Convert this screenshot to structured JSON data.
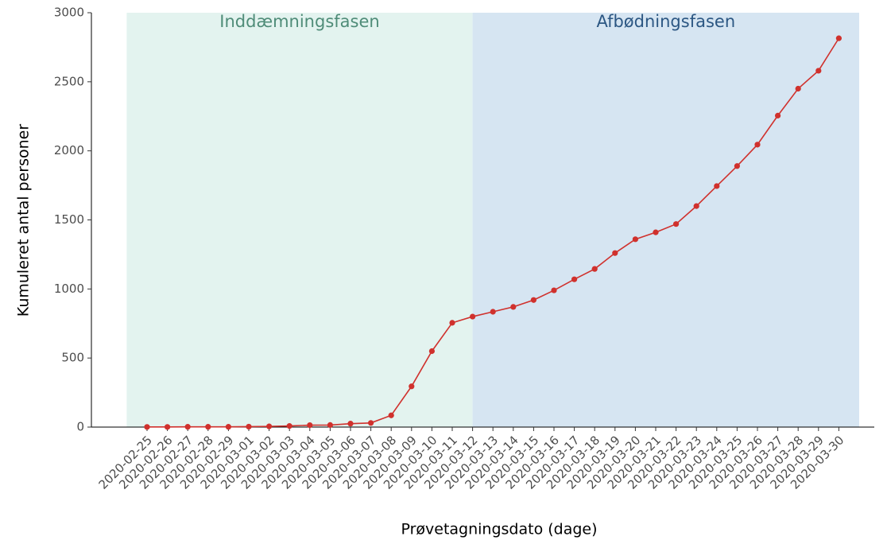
{
  "chart_data": {
    "type": "line",
    "xlabel": "Prøvetagningsdato (dage)",
    "ylabel": "Kumuleret antal personer",
    "categories": [
      "2020-02-25",
      "2020-02-26",
      "2020-02-27",
      "2020-02-28",
      "2020-02-29",
      "2020-03-01",
      "2020-03-02",
      "2020-03-03",
      "2020-03-04",
      "2020-03-05",
      "2020-03-06",
      "2020-03-07",
      "2020-03-08",
      "2020-03-09",
      "2020-03-10",
      "2020-03-11",
      "2020-03-12",
      "2020-03-13",
      "2020-03-14",
      "2020-03-15",
      "2020-03-16",
      "2020-03-17",
      "2020-03-18",
      "2020-03-19",
      "2020-03-20",
      "2020-03-21",
      "2020-03-22",
      "2020-03-23",
      "2020-03-24",
      "2020-03-25",
      "2020-03-26",
      "2020-03-27",
      "2020-03-28",
      "2020-03-29",
      "2020-03-30"
    ],
    "values": [
      1,
      1,
      2,
      2,
      2,
      3,
      5,
      8,
      14,
      15,
      25,
      30,
      85,
      295,
      550,
      755,
      800,
      835,
      870,
      920,
      990,
      1070,
      1145,
      1260,
      1360,
      1410,
      1470,
      1600,
      1745,
      1890,
      2045,
      2255,
      2450,
      2580,
      2815
    ],
    "color": "#d0312d",
    "ylim": [
      0,
      3000
    ],
    "yticks": [
      0,
      500,
      1000,
      1500,
      2000,
      2500,
      3000
    ],
    "phases": [
      {
        "label": "Inddæmningsfasen",
        "color": "#e3f3ef",
        "text_color": "#4f8c78"
      },
      {
        "label": "Afbødningsfasen",
        "color": "#d6e5f2",
        "text_color": "#2c5783"
      }
    ]
  }
}
